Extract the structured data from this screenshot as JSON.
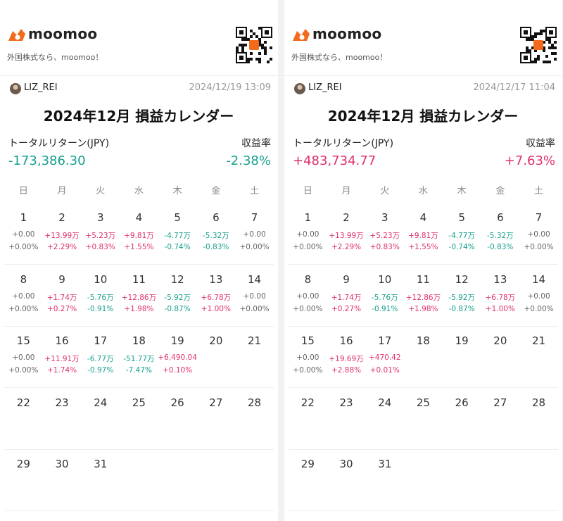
{
  "panels": [
    {
      "brand": "moomoo",
      "tagline": "外国株式なら、moomoo！",
      "user": "LIZ_REI",
      "timestamp": "2024/12/19 13:09",
      "title": "2024年12月 損益カレンダー",
      "total_label": "トータルリターン(JPY)",
      "total": "-173,386.30",
      "rate_label": "収益率",
      "rate": "-2.38%",
      "weekdays": [
        "日",
        "月",
        "火",
        "水",
        "木",
        "金",
        "土"
      ],
      "weeks": [
        [
          {
            "day": 1,
            "amount": "+0.00",
            "rate": "+0.00%"
          },
          {
            "day": 2,
            "amount": "+13.99万",
            "rate": "+2.29%"
          },
          {
            "day": 3,
            "amount": "+5.23万",
            "rate": "+0.83%"
          },
          {
            "day": 4,
            "amount": "+9.81万",
            "rate": "+1.55%"
          },
          {
            "day": 5,
            "amount": "-4.77万",
            "rate": "-0.74%"
          },
          {
            "day": 6,
            "amount": "-5.32万",
            "rate": "-0.83%"
          },
          {
            "day": 7,
            "amount": "+0.00",
            "rate": "+0.00%"
          }
        ],
        [
          {
            "day": 8,
            "amount": "+0.00",
            "rate": "+0.00%"
          },
          {
            "day": 9,
            "amount": "+1.74万",
            "rate": "+0.27%"
          },
          {
            "day": 10,
            "amount": "-5.76万",
            "rate": "-0.91%"
          },
          {
            "day": 11,
            "amount": "+12.86万",
            "rate": "+1.98%"
          },
          {
            "day": 12,
            "amount": "-5.92万",
            "rate": "-0.87%"
          },
          {
            "day": 13,
            "amount": "+6.78万",
            "rate": "+1.00%"
          },
          {
            "day": 14,
            "amount": "+0.00",
            "rate": "+0.00%"
          }
        ],
        [
          {
            "day": 15,
            "amount": "+0.00",
            "rate": "+0.00%"
          },
          {
            "day": 16,
            "amount": "+11.91万",
            "rate": "+1.74%"
          },
          {
            "day": 17,
            "amount": "-6.77万",
            "rate": "-0.97%"
          },
          {
            "day": 18,
            "amount": "-51.77万",
            "rate": "-7.47%"
          },
          {
            "day": 19,
            "amount": "+6,490.04",
            "rate": "+0.10%"
          },
          {
            "day": 20
          },
          {
            "day": 21
          }
        ],
        [
          {
            "day": 22
          },
          {
            "day": 23
          },
          {
            "day": 24
          },
          {
            "day": 25
          },
          {
            "day": 26
          },
          {
            "day": 27
          },
          {
            "day": 28
          }
        ],
        [
          {
            "day": 29
          },
          {
            "day": 30
          },
          {
            "day": 31
          }
        ]
      ]
    },
    {
      "brand": "moomoo",
      "tagline": "外国株式なら、moomoo！",
      "user": "LIZ_REI",
      "timestamp": "2024/12/17 11:04",
      "title": "2024年12月 損益カレンダー",
      "total_label": "トータルリターン(JPY)",
      "total": "+483,734.77",
      "rate_label": "収益率",
      "rate": "+7.63%",
      "weekdays": [
        "日",
        "月",
        "火",
        "水",
        "木",
        "金",
        "土"
      ],
      "weeks": [
        [
          {
            "day": 1,
            "amount": "+0.00",
            "rate": "+0.00%"
          },
          {
            "day": 2,
            "amount": "+13.99万",
            "rate": "+2.29%"
          },
          {
            "day": 3,
            "amount": "+5.23万",
            "rate": "+0.83%"
          },
          {
            "day": 4,
            "amount": "+9.81万",
            "rate": "+1.55%"
          },
          {
            "day": 5,
            "amount": "-4.77万",
            "rate": "-0.74%"
          },
          {
            "day": 6,
            "amount": "-5.32万",
            "rate": "-0.83%"
          },
          {
            "day": 7,
            "amount": "+0.00",
            "rate": "+0.00%"
          }
        ],
        [
          {
            "day": 8,
            "amount": "+0.00",
            "rate": "+0.00%"
          },
          {
            "day": 9,
            "amount": "+1.74万",
            "rate": "+0.27%"
          },
          {
            "day": 10,
            "amount": "-5.76万",
            "rate": "-0.91%"
          },
          {
            "day": 11,
            "amount": "+12.86万",
            "rate": "+1.98%"
          },
          {
            "day": 12,
            "amount": "-5.92万",
            "rate": "-0.87%"
          },
          {
            "day": 13,
            "amount": "+6.78万",
            "rate": "+1.00%"
          },
          {
            "day": 14,
            "amount": "+0.00",
            "rate": "+0.00%"
          }
        ],
        [
          {
            "day": 15,
            "amount": "+0.00",
            "rate": "+0.00%"
          },
          {
            "day": 16,
            "amount": "+19.69万",
            "rate": "+2.88%"
          },
          {
            "day": 17,
            "amount": "+470.42",
            "rate": "+0.01%"
          },
          {
            "day": 18
          },
          {
            "day": 19
          },
          {
            "day": 20
          },
          {
            "day": 21
          }
        ],
        [
          {
            "day": 22
          },
          {
            "day": 23
          },
          {
            "day": 24
          },
          {
            "day": 25
          },
          {
            "day": 26
          },
          {
            "day": 27
          },
          {
            "day": 28
          }
        ],
        [
          {
            "day": 29
          },
          {
            "day": 30
          },
          {
            "day": 31
          }
        ]
      ]
    }
  ]
}
